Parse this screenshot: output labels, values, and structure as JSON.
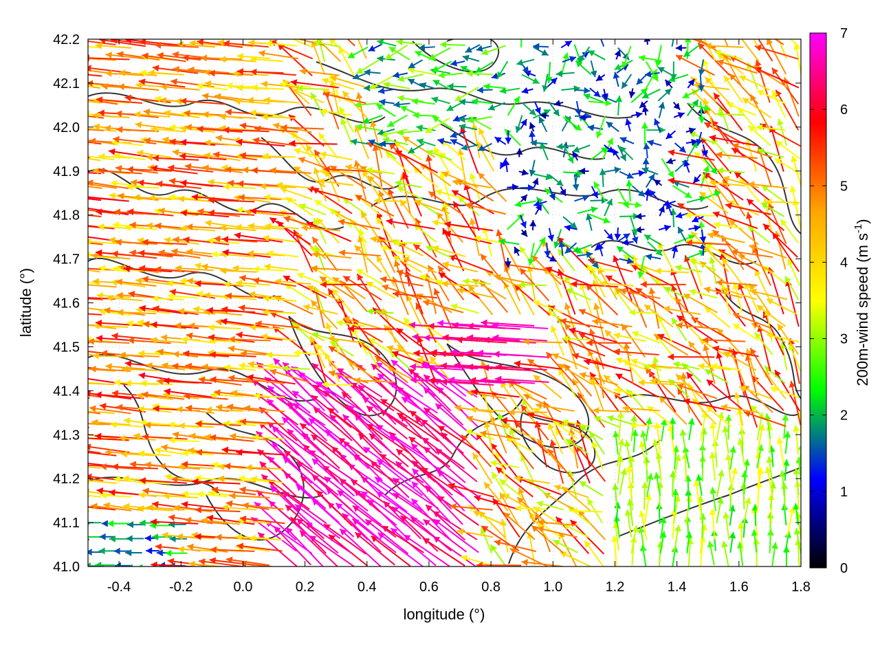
{
  "chart_data": {
    "type": "vector-field",
    "xlabel": "longitude (°)",
    "ylabel": "latitude (°)",
    "xlim": [
      -0.5,
      1.8
    ],
    "ylim": [
      41.0,
      42.2
    ],
    "xticks": [
      "-0.4",
      "-0.2",
      "0.0",
      "0.2",
      "0.4",
      "0.6",
      "0.8",
      "1.0",
      "1.2",
      "1.4",
      "1.6",
      "1.8"
    ],
    "xtick_values": [
      -0.4,
      -0.2,
      0.0,
      0.2,
      0.4,
      0.6,
      0.8,
      1.0,
      1.2,
      1.4,
      1.6,
      1.8
    ],
    "yticks": [
      "41.0",
      "41.1",
      "41.2",
      "41.3",
      "41.4",
      "41.5",
      "41.6",
      "41.7",
      "41.8",
      "41.9",
      "42.0",
      "42.1",
      "42.2"
    ],
    "ytick_values": [
      41.0,
      41.1,
      41.2,
      41.3,
      41.4,
      41.5,
      41.6,
      41.7,
      41.8,
      41.9,
      42.0,
      42.1,
      42.2
    ],
    "grid": true,
    "colorbar": {
      "label": "200m-wind speed (m s",
      "label_sup": "-1",
      "label_end": ")",
      "range": [
        0,
        7
      ],
      "ticks": [
        "0",
        "1",
        "2",
        "3",
        "4",
        "5",
        "6",
        "7"
      ],
      "tick_values": [
        0,
        1,
        2,
        3,
        4,
        5,
        6,
        7
      ],
      "palette": [
        "#000000",
        "#0000ff",
        "#00ff00",
        "#ffff00",
        "#ffa500",
        "#ff0000",
        "#ff00ff"
      ]
    },
    "field_description": {
      "dominant_direction": "toward west / north-west",
      "regions": [
        {
          "area": "west (lon -0.5 to 0.2)",
          "speed_range": [
            4,
            6
          ],
          "direction": "west"
        },
        {
          "area": "south-central (lon 0.2 to 0.8, lat 41.0 to 41.4)",
          "speed_range": [
            6,
            7
          ],
          "direction": "north-west"
        },
        {
          "area": "north-east (lon 0.8 to 1.5, lat 41.7 to 42.1)",
          "speed_range": [
            0.5,
            2.5
          ],
          "direction": "variable"
        },
        {
          "area": "south-east (lon 1.2 to 1.8, lat 41.0 to 41.3)",
          "speed_range": [
            2,
            3.5
          ],
          "direction": "north"
        },
        {
          "area": "south-west corner (lon -0.5 to -0.2, lat 41.0 to 41.1)",
          "speed_range": [
            1,
            2
          ],
          "direction": "west"
        }
      ]
    },
    "contours": "terrain elevation contours (dark grey lines)"
  }
}
